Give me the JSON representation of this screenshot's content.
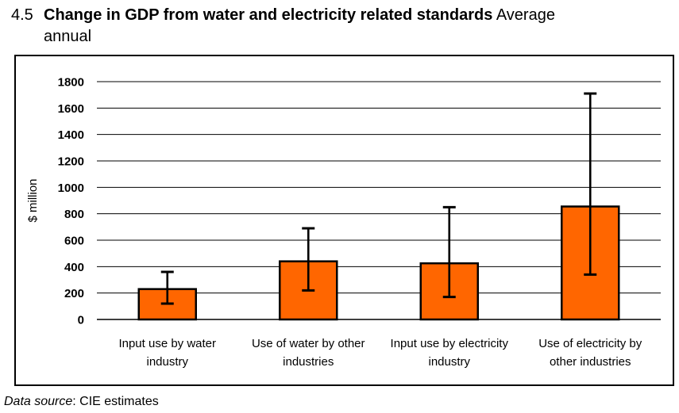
{
  "header": {
    "number": "4.5",
    "title_bold": "Change in GDP from water and electricity related standards",
    "title_regular_line1": "Average",
    "title_regular_line2": "annual"
  },
  "footer": {
    "source_label": "Data source",
    "source_rest": ": CIE estimates"
  },
  "chart_data": {
    "type": "bar",
    "title": "4.5 Change in GDP from water and electricity related standards (Average annual)",
    "xlabel": "",
    "ylabel": "$ million",
    "ylim": [
      0,
      1800
    ],
    "ytick_step": 200,
    "grid": true,
    "legend": false,
    "bar_color": "#FF6600",
    "bar_border_color": "#000000",
    "error_bar_color": "#000000",
    "categories": [
      "Input use by water industry",
      "Use of water by other industries",
      "Input use by electricity industry",
      "Use of electricity by other industries"
    ],
    "category_lines": [
      [
        "Input use by water",
        "industry"
      ],
      [
        "Use of water by other",
        "industries"
      ],
      [
        "Input use by electricity",
        "industry"
      ],
      [
        "Use of electricity by",
        "other industries"
      ]
    ],
    "values": [
      230,
      440,
      425,
      855
    ],
    "error_low": [
      120,
      220,
      170,
      340
    ],
    "error_high": [
      360,
      690,
      850,
      1710
    ],
    "data_source": "CIE estimates"
  }
}
